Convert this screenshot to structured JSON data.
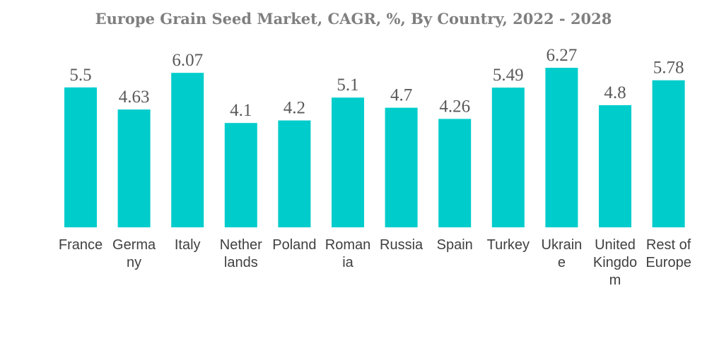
{
  "chart_data": {
    "type": "bar",
    "title": "Europe Grain Seed Market, CAGR, %, By Country, 2022 - 2028",
    "xlabel": "",
    "ylabel": "",
    "categories": [
      "France",
      "Germany",
      "Italy",
      "Netherlands",
      "Poland",
      "Romania",
      "Russia",
      "Spain",
      "Turkey",
      "Ukraine",
      "United Kingdom",
      "Rest of Europe"
    ],
    "category_label_lines": [
      [
        "France"
      ],
      [
        "Germa",
        "ny"
      ],
      [
        "Italy"
      ],
      [
        "Nether",
        "lands"
      ],
      [
        "Poland"
      ],
      [
        "Roman",
        "ia"
      ],
      [
        "Russia"
      ],
      [
        "Spain"
      ],
      [
        "Turkey"
      ],
      [
        "Ukrain",
        "e"
      ],
      [
        "United",
        "Kingdo",
        "m"
      ],
      [
        "Rest of",
        "Europe"
      ]
    ],
    "values": [
      5.5,
      4.63,
      6.07,
      4.1,
      4.2,
      5.1,
      4.7,
      4.26,
      5.49,
      6.27,
      4.8,
      5.78
    ],
    "value_labels": [
      "5.5",
      "4.63",
      "6.07",
      "4.1",
      "4.2",
      "5.1",
      "4.7",
      "4.26",
      "5.49",
      "6.27",
      "4.8",
      "5.78"
    ],
    "ylim": [
      0,
      6.27
    ],
    "grid": false,
    "legend": "none",
    "bar_color": "#00CCCC"
  }
}
